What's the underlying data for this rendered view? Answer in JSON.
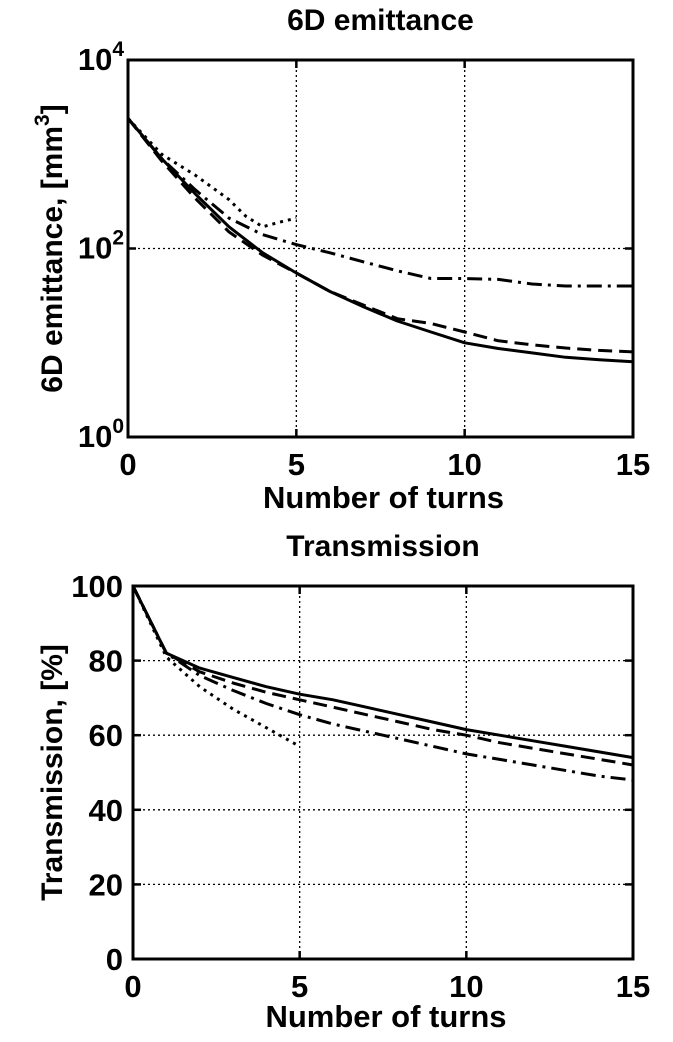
{
  "chart_data": [
    {
      "type": "line",
      "title": "6D emittance",
      "xlabel": "Number of turns",
      "ylabel": "6D emittance, [mm",
      "ylabel_sup": "3",
      "ylabel_close": "]",
      "xlim": [
        0,
        15
      ],
      "ylim": [
        1,
        10000
      ],
      "yscale": "log",
      "grid": true,
      "x_ticks": [
        0,
        5,
        10,
        15
      ],
      "x_tick_labels": [
        "0",
        "5",
        "10",
        "15"
      ],
      "y_ticks": [
        1,
        100,
        10000
      ],
      "y_tick_labels": [
        {
          "base": "10",
          "exp": "0"
        },
        {
          "base": "10",
          "exp": "2"
        },
        {
          "base": "10",
          "exp": "4"
        }
      ],
      "series": [
        {
          "style": "solid",
          "color": "#000000",
          "x": [
            0,
            1,
            2,
            3,
            4,
            5,
            6,
            7,
            8,
            9,
            10,
            11,
            12,
            13,
            14,
            15
          ],
          "y": [
            2400,
            900,
            380,
            170,
            90,
            55,
            35,
            24,
            17,
            13,
            10,
            8.7,
            7.8,
            7.0,
            6.6,
            6.3
          ]
        },
        {
          "style": "dashed",
          "color": "#000000",
          "x": [
            0,
            1,
            2,
            3,
            4,
            5,
            6,
            7,
            8,
            9,
            10,
            11,
            12,
            13,
            14,
            15
          ],
          "y": [
            2400,
            850,
            340,
            150,
            85,
            55,
            35,
            25,
            18,
            16,
            13,
            10.5,
            9.5,
            8.8,
            8.3,
            8.0
          ]
        },
        {
          "style": "dashdot",
          "color": "#000000",
          "x": [
            0,
            1,
            2,
            3,
            4,
            5,
            6,
            7,
            8,
            9,
            10,
            11,
            12,
            13,
            14,
            15
          ],
          "y": [
            2400,
            900,
            420,
            210,
            140,
            110,
            90,
            72,
            58,
            48,
            48,
            47,
            42,
            40,
            40,
            40
          ]
        },
        {
          "style": "dotted",
          "color": "#000000",
          "x": [
            0,
            1,
            2,
            3,
            3.5,
            4,
            4.5,
            5
          ],
          "y": [
            2400,
            1000,
            600,
            330,
            220,
            170,
            190,
            210
          ]
        }
      ]
    },
    {
      "type": "line",
      "title": "Transmission",
      "xlabel": "Number of turns",
      "ylabel": "Transmission, [%]",
      "xlim": [
        0,
        15
      ],
      "ylim": [
        0,
        100
      ],
      "yscale": "linear",
      "grid": true,
      "x_ticks": [
        0,
        5,
        10,
        15
      ],
      "x_tick_labels": [
        "0",
        "5",
        "10",
        "15"
      ],
      "y_ticks": [
        0,
        20,
        40,
        60,
        80,
        100
      ],
      "y_tick_labels": [
        "0",
        "20",
        "40",
        "60",
        "80",
        "100"
      ],
      "series": [
        {
          "style": "solid",
          "color": "#000000",
          "x": [
            0,
            1,
            2,
            3,
            4,
            5,
            6,
            7,
            8,
            9,
            10,
            11,
            12,
            13,
            14,
            15
          ],
          "y": [
            100,
            82,
            78,
            75.5,
            73,
            71,
            69.5,
            67.5,
            65.5,
            63.5,
            61.5,
            60,
            58.5,
            57,
            55.5,
            54
          ]
        },
        {
          "style": "dashed",
          "color": "#000000",
          "x": [
            0,
            1,
            2,
            3,
            4,
            5,
            6,
            7,
            8,
            9,
            10,
            11,
            12,
            13,
            14,
            15
          ],
          "y": [
            100,
            82,
            77,
            74,
            71.5,
            69.5,
            67.5,
            65.5,
            63.5,
            61.5,
            60,
            58,
            56.5,
            55,
            53.5,
            52
          ]
        },
        {
          "style": "dashdot",
          "color": "#000000",
          "x": [
            0,
            1,
            2,
            3,
            4,
            5,
            6,
            7,
            8,
            9,
            10,
            11,
            12,
            13,
            14,
            15
          ],
          "y": [
            100,
            82,
            76,
            72,
            68.5,
            65.5,
            63,
            61,
            59,
            57,
            55,
            53.5,
            52,
            50.5,
            49,
            48
          ]
        },
        {
          "style": "dotted",
          "color": "#000000",
          "x": [
            0,
            1,
            2,
            3,
            4,
            5
          ],
          "y": [
            100,
            81,
            73,
            67,
            62,
            57
          ]
        }
      ]
    }
  ]
}
